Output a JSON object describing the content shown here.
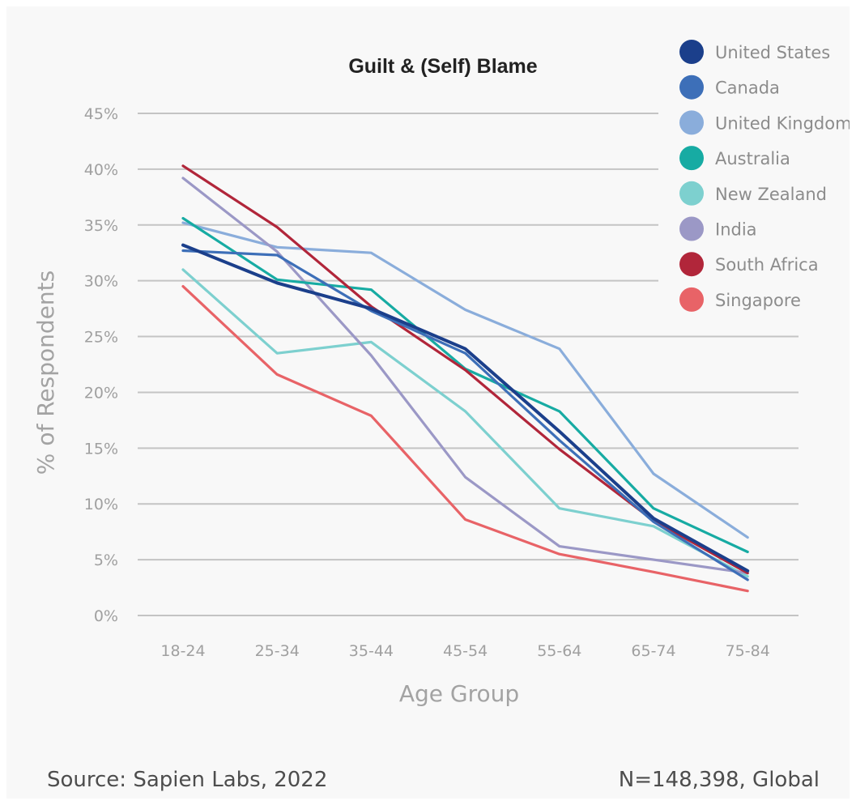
{
  "footer": {
    "source": "Source: Sapien Labs, 2022",
    "sample": "N=148,398, Global"
  },
  "chart_data": {
    "type": "line",
    "title": "Guilt & (Self) Blame",
    "xlabel": "Age Group",
    "ylabel": "% of Respondents",
    "categories": [
      "18-24",
      "25-34",
      "35-44",
      "45-54",
      "55-64",
      "65-74",
      "75-84"
    ],
    "y_ticks": [
      "0%",
      "5%",
      "10%",
      "15%",
      "20%",
      "25%",
      "30%",
      "35%",
      "40%",
      "45%"
    ],
    "ylim": [
      0,
      45
    ],
    "grid": true,
    "legend_position": "top-right",
    "series": [
      {
        "name": "United States",
        "color": "#1b3f8b",
        "values": [
          33.2,
          29.8,
          27.5,
          23.9,
          16.5,
          8.7,
          4.0
        ]
      },
      {
        "name": "Canada",
        "color": "#3d6fb8",
        "values": [
          32.7,
          32.3,
          27.3,
          23.5,
          15.7,
          8.4,
          3.2
        ]
      },
      {
        "name": "United Kingdom",
        "color": "#8aaddb",
        "values": [
          35.2,
          33.0,
          32.5,
          27.4,
          23.9,
          12.7,
          7.0
        ]
      },
      {
        "name": "Australia",
        "color": "#17aba3",
        "values": [
          35.6,
          30.1,
          29.2,
          22.1,
          18.3,
          9.6,
          5.7
        ]
      },
      {
        "name": "New Zealand",
        "color": "#7dd0cf",
        "values": [
          31.0,
          23.5,
          24.5,
          18.3,
          9.6,
          8.0,
          3.5
        ]
      },
      {
        "name": "India",
        "color": "#9b98c6",
        "values": [
          39.2,
          32.6,
          23.3,
          12.4,
          6.2,
          5.0,
          3.8
        ]
      },
      {
        "name": "South Africa",
        "color": "#b1263a",
        "values": [
          40.3,
          34.8,
          27.7,
          22.0,
          14.9,
          8.5,
          3.8
        ]
      },
      {
        "name": "Singapore",
        "color": "#e86367",
        "values": [
          29.5,
          21.6,
          17.9,
          8.6,
          5.5,
          3.9,
          2.2
        ]
      }
    ]
  }
}
